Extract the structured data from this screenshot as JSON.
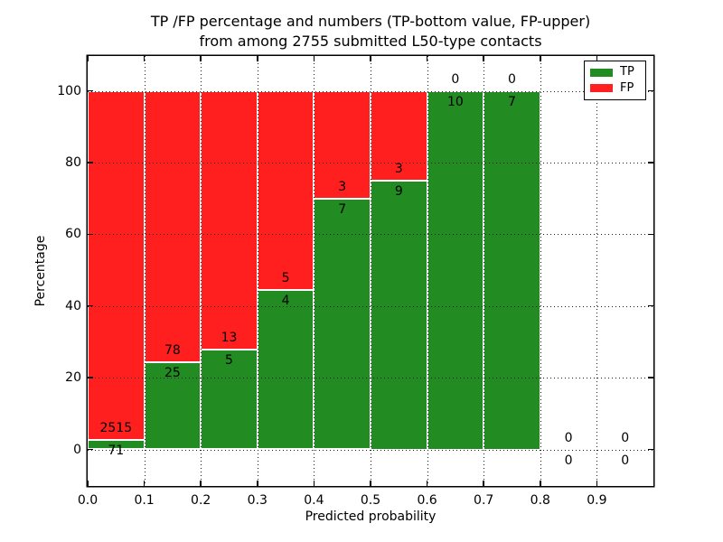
{
  "title": {
    "line1": "TP /FP percentage and numbers (TP-bottom value, FP-upper)",
    "line2": "from among 2755 submitted L50-type contacts"
  },
  "axes": {
    "xlabel": "Predicted probability",
    "ylabel": "Percentage",
    "ytick_labels": [
      "0",
      "20",
      "40",
      "60",
      "80",
      "100"
    ],
    "yticks": [
      0,
      20,
      40,
      60,
      80,
      100
    ],
    "xtick_labels": [
      "0.0",
      "0.1",
      "0.2",
      "0.3",
      "0.4",
      "0.5",
      "0.6",
      "0.7",
      "0.8",
      "0.9"
    ],
    "xticks": [
      0.0,
      0.1,
      0.2,
      0.3,
      0.4,
      0.5,
      0.6,
      0.7,
      0.8,
      0.9
    ],
    "xlim": [
      0.0,
      1.0
    ],
    "grid": "dotted"
  },
  "colors": {
    "tp": "#228B22",
    "fp": "#FF1F1F",
    "frame": "#000000",
    "background": "#FFFFFF"
  },
  "legend": {
    "position": "upper-right",
    "entries": [
      {
        "label": "TP",
        "color": "#228B22"
      },
      {
        "label": "FP",
        "color": "#FF1F1F"
      }
    ]
  },
  "chart_data": {
    "type": "bar",
    "stacked": true,
    "units": "percent-of-bin",
    "title": "TP /FP percentage and numbers (TP-bottom value, FP-upper) from among 2755 submitted L50-type contacts",
    "xlabel": "Predicted probability",
    "ylabel": "Percentage",
    "total_contacts": 2755,
    "note": "Each bin stacked to 100%: green TP share bottom, red FP share top; labels show raw counts (FP above boundary, TP below)",
    "bins": [
      {
        "range": [
          0.0,
          0.1
        ],
        "tp": 71,
        "fp": 2515,
        "tp_pct": 2.75
      },
      {
        "range": [
          0.1,
          0.2
        ],
        "tp": 25,
        "fp": 78,
        "tp_pct": 24.27
      },
      {
        "range": [
          0.2,
          0.3
        ],
        "tp": 5,
        "fp": 13,
        "tp_pct": 27.78
      },
      {
        "range": [
          0.3,
          0.4
        ],
        "tp": 4,
        "fp": 5,
        "tp_pct": 44.44
      },
      {
        "range": [
          0.4,
          0.5
        ],
        "tp": 7,
        "fp": 3,
        "tp_pct": 70.0
      },
      {
        "range": [
          0.5,
          0.6
        ],
        "tp": 9,
        "fp": 3,
        "tp_pct": 75.0
      },
      {
        "range": [
          0.6,
          0.7
        ],
        "tp": 10,
        "fp": 0,
        "tp_pct": 100.0
      },
      {
        "range": [
          0.7,
          0.8
        ],
        "tp": 7,
        "fp": 0,
        "tp_pct": 100.0
      },
      {
        "range": [
          0.8,
          0.9
        ],
        "tp": 0,
        "fp": 0,
        "tp_pct": null
      },
      {
        "range": [
          0.9,
          1.0
        ],
        "tp": 0,
        "fp": 0,
        "tp_pct": null
      }
    ]
  }
}
